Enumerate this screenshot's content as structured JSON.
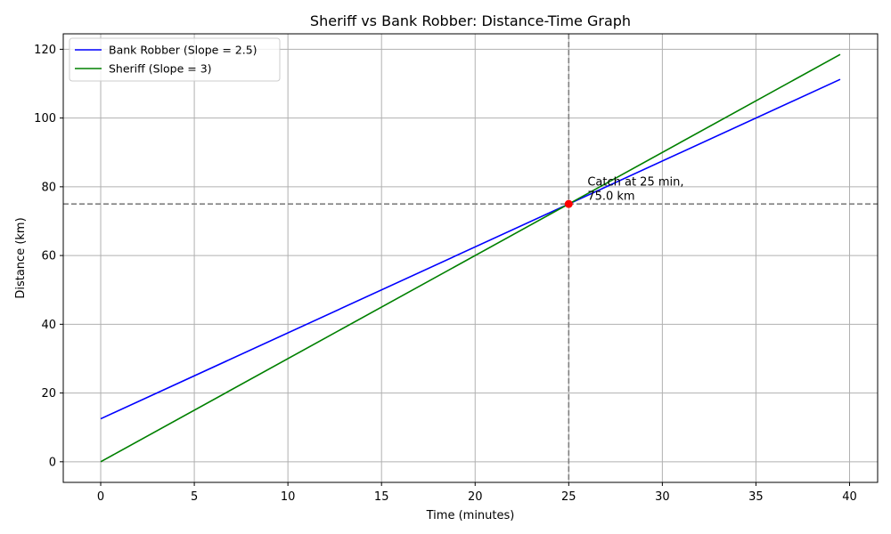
{
  "chart_data": {
    "type": "line",
    "title": "Sheriff vs Bank Robber: Distance-Time Graph",
    "xlabel": "Time (minutes)",
    "ylabel": "Distance (km)",
    "xlim": [
      -2,
      41.5
    ],
    "ylim": [
      -6,
      124.5
    ],
    "xticks": [
      0,
      5,
      10,
      15,
      20,
      25,
      30,
      35,
      40
    ],
    "yticks": [
      0,
      20,
      40,
      60,
      80,
      100,
      120
    ],
    "grid": true,
    "legend_position": "top-left",
    "series": [
      {
        "name": "Bank Robber (Slope = 2.5)",
        "color": "#0000ff",
        "x": [
          0,
          39.5
        ],
        "y": [
          12.5,
          111.25
        ]
      },
      {
        "name": "Sheriff (Slope = 3)",
        "color": "#008000",
        "x": [
          0,
          39.5
        ],
        "y": [
          0,
          118.5
        ]
      }
    ],
    "reference_lines": {
      "vertical_x": 25,
      "horizontal_y": 75,
      "color": "#808080",
      "style": "dashed"
    },
    "catch_point": {
      "x": 25,
      "y": 75,
      "color": "#ff0000"
    },
    "annotation": {
      "lines": [
        "Catch at 25 min,",
        "75.0 km"
      ],
      "x": 26,
      "y": 77
    }
  }
}
